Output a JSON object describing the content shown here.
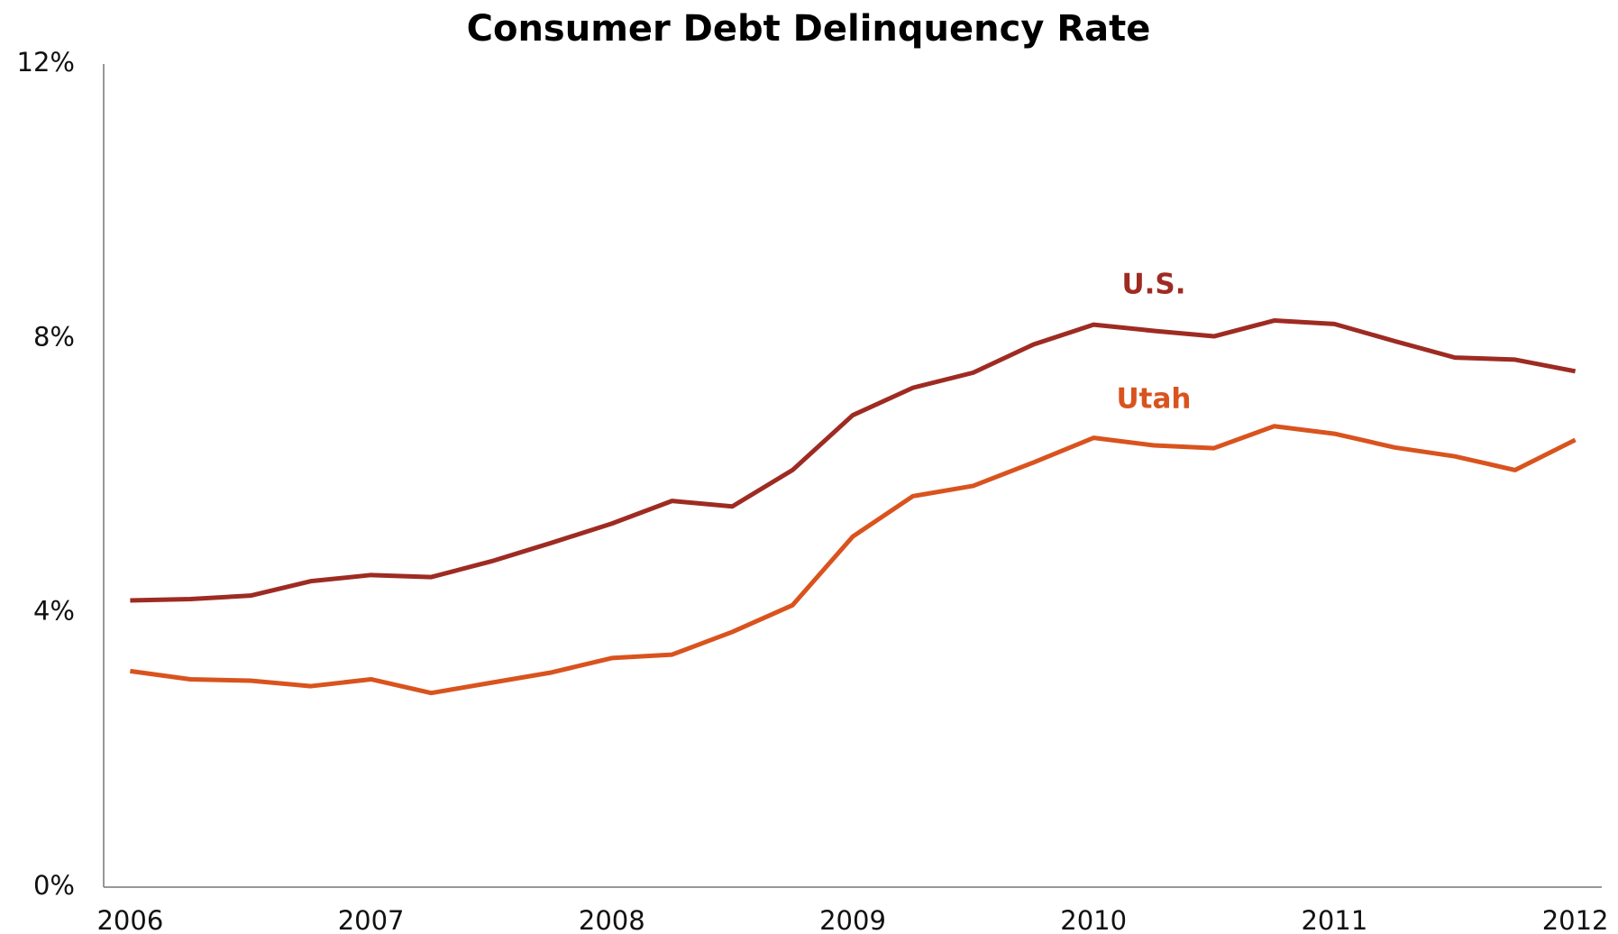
{
  "chart_data": {
    "type": "line",
    "title": "Consumer Debt Delinquency Rate",
    "x": [
      2006,
      2006.25,
      2006.5,
      2006.75,
      2007,
      2007.25,
      2007.5,
      2007.75,
      2008,
      2008.25,
      2008.5,
      2008.75,
      2009,
      2009.25,
      2009.5,
      2009.75,
      2010,
      2010.25,
      2010.5,
      2010.75,
      2011,
      2011.25,
      2011.5,
      2011.75,
      2012
    ],
    "series": [
      {
        "name": "U.S.",
        "color": "#9e2b22",
        "values": [
          4.18,
          4.2,
          4.25,
          4.46,
          4.55,
          4.52,
          4.75,
          5.02,
          5.3,
          5.63,
          5.55,
          6.08,
          6.88,
          7.28,
          7.5,
          7.91,
          8.2,
          8.11,
          8.03,
          8.26,
          8.21,
          7.96,
          7.72,
          7.69,
          7.52
        ]
      },
      {
        "name": "Utah",
        "color": "#d9531e",
        "values": [
          3.15,
          3.03,
          3.01,
          2.93,
          3.03,
          2.83,
          2.98,
          3.13,
          3.34,
          3.39,
          3.72,
          4.11,
          5.11,
          5.7,
          5.85,
          6.19,
          6.55,
          6.44,
          6.4,
          6.72,
          6.61,
          6.41,
          6.28,
          6.08,
          6.52
        ]
      }
    ],
    "xlim": [
      2005.89,
      2012.11
    ],
    "xticks": [
      2006,
      2007,
      2008,
      2009,
      2010,
      2011,
      2012
    ],
    "ylim": [
      0,
      12
    ],
    "yticks": [
      {
        "value": 0,
        "label": "0%"
      },
      {
        "value": 4,
        "label": "4%"
      },
      {
        "value": 8,
        "label": "8%"
      },
      {
        "value": 12,
        "label": "12%"
      }
    ],
    "grid": false
  }
}
